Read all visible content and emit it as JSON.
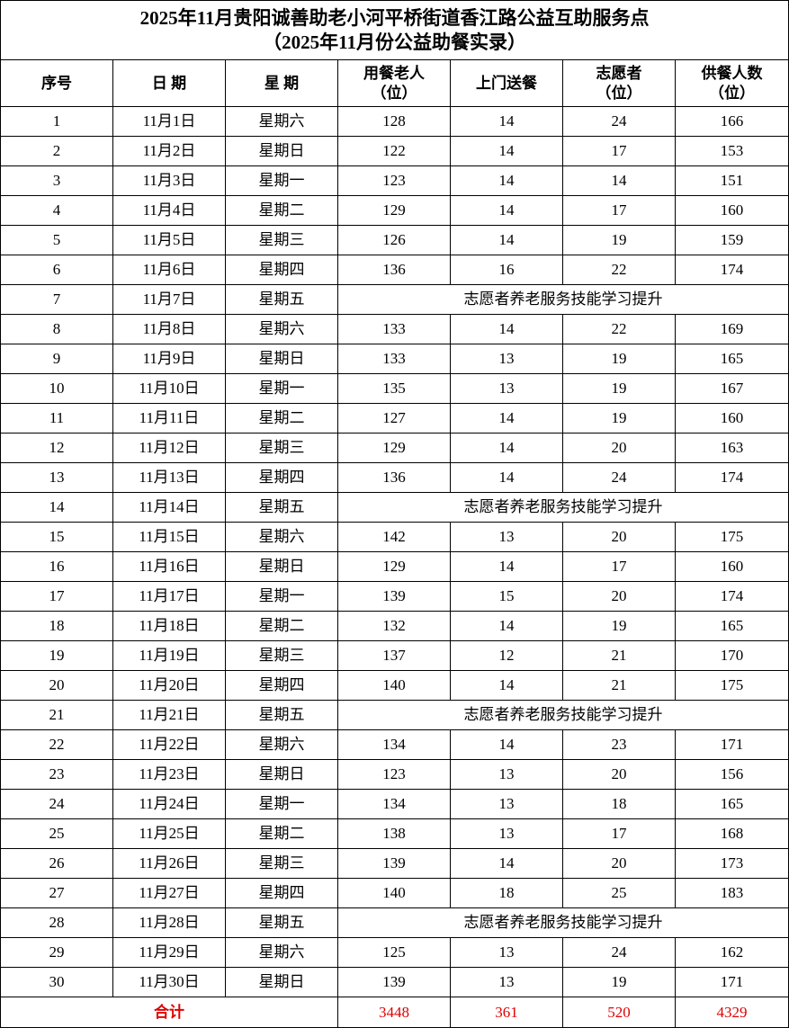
{
  "title": [
    "2025年11月贵阳诚善助老小河平桥街道香江路公益互助服务点",
    "（2025年11月份公益助餐实录）"
  ],
  "table": {
    "header": [
      [
        "序号"
      ],
      [
        "日 期"
      ],
      [
        "星 期"
      ],
      [
        "用餐老人",
        "（位）"
      ],
      [
        "上门送餐"
      ],
      [
        "志愿者",
        "（位）"
      ],
      [
        "供餐人数",
        "（位）"
      ]
    ],
    "rows": [
      [
        1,
        "11月1日",
        "星期六",
        128,
        14,
        24,
        166
      ],
      [
        2,
        "11月2日",
        "星期日",
        122,
        14,
        17,
        153
      ],
      [
        3,
        "11月3日",
        "星期一",
        123,
        14,
        14,
        151
      ],
      [
        4,
        "11月4日",
        "星期二",
        129,
        14,
        17,
        160
      ],
      [
        5,
        "11月5日",
        "星期三",
        126,
        14,
        19,
        159
      ],
      [
        6,
        "11月6日",
        "星期四",
        136,
        16,
        22,
        174
      ],
      [
        7,
        "11月7日",
        "星期五",
        "志愿者养老服务技能学习提升"
      ],
      [
        8,
        "11月8日",
        "星期六",
        133,
        14,
        22,
        169
      ],
      [
        9,
        "11月9日",
        "星期日",
        133,
        13,
        19,
        165
      ],
      [
        10,
        "11月10日",
        "星期一",
        135,
        13,
        19,
        167
      ],
      [
        11,
        "11月11日",
        "星期二",
        127,
        14,
        19,
        160
      ],
      [
        12,
        "11月12日",
        "星期三",
        129,
        14,
        20,
        163
      ],
      [
        13,
        "11月13日",
        "星期四",
        136,
        14,
        24,
        174
      ],
      [
        14,
        "11月14日",
        "星期五",
        "志愿者养老服务技能学习提升"
      ],
      [
        15,
        "11月15日",
        "星期六",
        142,
        13,
        20,
        175
      ],
      [
        16,
        "11月16日",
        "星期日",
        129,
        14,
        17,
        160
      ],
      [
        17,
        "11月17日",
        "星期一",
        139,
        15,
        20,
        174
      ],
      [
        18,
        "11月18日",
        "星期二",
        132,
        14,
        19,
        165
      ],
      [
        19,
        "11月19日",
        "星期三",
        137,
        12,
        21,
        170
      ],
      [
        20,
        "11月20日",
        "星期四",
        140,
        14,
        21,
        175
      ],
      [
        21,
        "11月21日",
        "星期五",
        "志愿者养老服务技能学习提升"
      ],
      [
        22,
        "11月22日",
        "星期六",
        134,
        14,
        23,
        171
      ],
      [
        23,
        "11月23日",
        "星期日",
        123,
        13,
        20,
        156
      ],
      [
        24,
        "11月24日",
        "星期一",
        134,
        13,
        18,
        165
      ],
      [
        25,
        "11月25日",
        "星期二",
        138,
        13,
        17,
        168
      ],
      [
        26,
        "11月26日",
        "星期三",
        139,
        14,
        20,
        173
      ],
      [
        27,
        "11月27日",
        "星期四",
        140,
        18,
        25,
        183
      ],
      [
        28,
        "11月28日",
        "星期五",
        "志愿者养老服务技能学习提升"
      ],
      [
        29,
        "11月29日",
        "星期六",
        125,
        13,
        24,
        162
      ],
      [
        30,
        "11月30日",
        "星期日",
        139,
        13,
        19,
        171
      ]
    ],
    "total": [
      "合计",
      3448,
      361,
      520,
      4329
    ]
  }
}
